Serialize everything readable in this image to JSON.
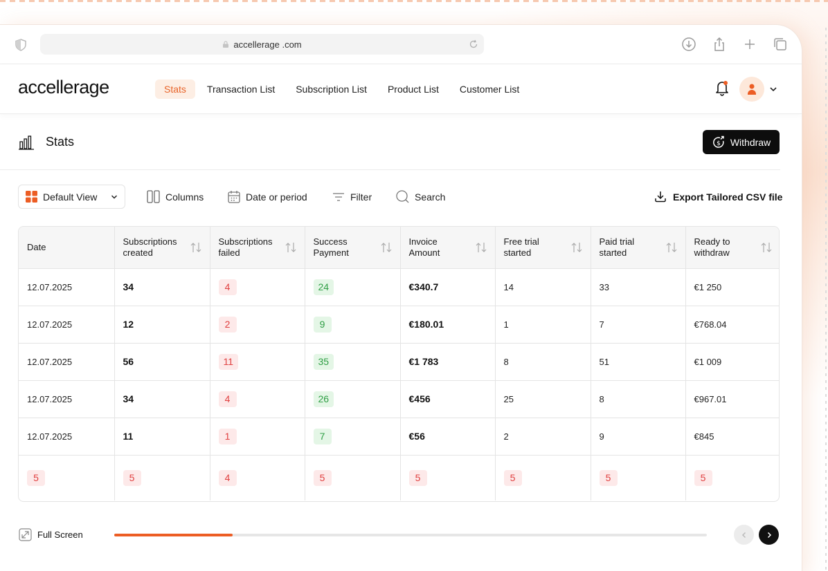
{
  "browser": {
    "url": "accellerage .com"
  },
  "nav": {
    "logo": "accellerage",
    "links": [
      {
        "label": "Stats",
        "active": true
      },
      {
        "label": "Transaction List",
        "active": false
      },
      {
        "label": "Subscription List",
        "active": false
      },
      {
        "label": "Product List",
        "active": false
      },
      {
        "label": "Customer List",
        "active": false
      }
    ],
    "accent_color": "#e8642a"
  },
  "page": {
    "title": "Stats",
    "withdraw_label": "Withdraw"
  },
  "toolbar": {
    "view_label": "Default View",
    "columns_label": "Columns",
    "date_label": "Date or period",
    "filter_label": "Filter",
    "search_label": "Search",
    "export_label": "Export Tailored CSV file"
  },
  "table": {
    "headers": [
      "Date",
      "Subscriptions created",
      "Subscriptions failed",
      "Success Payment",
      "Invoice Amount",
      "Free trial started",
      "Paid trial started",
      "Ready to withdraw"
    ],
    "rows": [
      {
        "date": "12.07.2025",
        "created": "34",
        "failed": "4",
        "success": "24",
        "invoice": "€340.7",
        "free": "14",
        "paid": "33",
        "ready": "€1 250"
      },
      {
        "date": "12.07.2025",
        "created": "12",
        "failed": "2",
        "success": "9",
        "invoice": "€180.01",
        "free": "1",
        "paid": "7",
        "ready": "€768.04"
      },
      {
        "date": "12.07.2025",
        "created": "56",
        "failed": "11",
        "success": "35",
        "invoice": "€1 783",
        "free": "8",
        "paid": "51",
        "ready": "€1 009"
      },
      {
        "date": "12.07.2025",
        "created": "34",
        "failed": "4",
        "success": "26",
        "invoice": "€456",
        "free": "25",
        "paid": "8",
        "ready": "€967.01"
      },
      {
        "date": "12.07.2025",
        "created": "11",
        "failed": "1",
        "success": "7",
        "invoice": "€56",
        "free": "2",
        "paid": "9",
        "ready": "€845"
      }
    ],
    "totals": [
      "5",
      "5",
      "4",
      "5",
      "5",
      "5",
      "5",
      "5"
    ],
    "failed_color": "#e04040",
    "success_color": "#2f9e45"
  },
  "footer": {
    "fullscreen_label": "Full Screen",
    "scroll_progress": 0.2
  }
}
